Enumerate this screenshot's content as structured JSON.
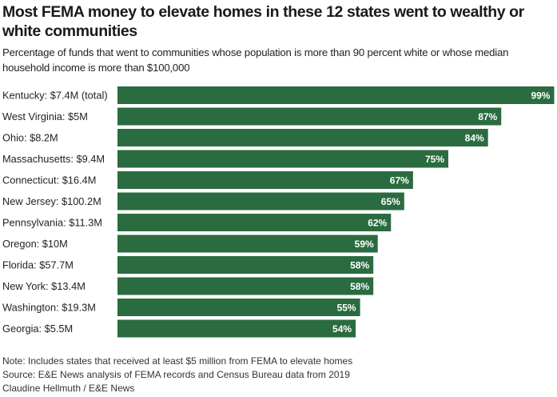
{
  "chart_data": {
    "type": "bar",
    "orientation": "horizontal",
    "title": "Most FEMA money to elevate homes in these 12 states went to wealthy or white communities",
    "subtitle": "Percentage of funds that went to communities whose population is more than 90 percent white or whose median household income is more than $100,000",
    "categories": [
      "Kentucky: $7.4M (total)",
      "West Virginia: $5M",
      "Ohio: $8.2M",
      "Massachusetts: $9.4M",
      "Connecticut: $16.4M",
      "New Jersey: $100.2M",
      "Pennsylvania: $11.3M",
      "Oregon: $10M",
      "Florida: $57.7M",
      "New York: $13.4M",
      "Washington: $19.3M",
      "Georgia: $5.5M"
    ],
    "values": [
      99,
      87,
      84,
      75,
      67,
      65,
      62,
      59,
      58,
      58,
      55,
      54
    ],
    "value_labels": [
      "99%",
      "87%",
      "84%",
      "75%",
      "67%",
      "65%",
      "62%",
      "59%",
      "58%",
      "58%",
      "55%",
      "54%"
    ],
    "xlim": [
      0,
      100
    ],
    "unit": "%",
    "grid": false,
    "color": "#2a6b40"
  },
  "notes": [
    "Note: Includes states that received at least $5 million from FEMA to elevate homes",
    "Source: E&E News analysis of FEMA records and Census Bureau data from 2019",
    "Claudine Hellmuth / E&E News"
  ]
}
